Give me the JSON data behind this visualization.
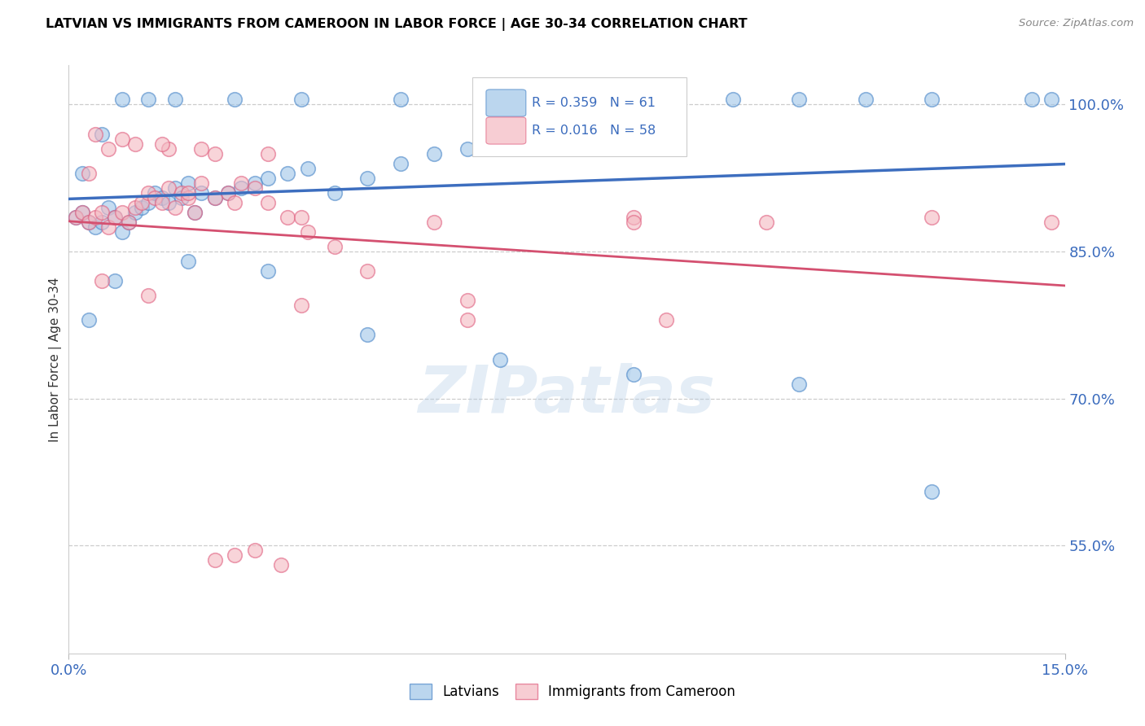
{
  "title": "LATVIAN VS IMMIGRANTS FROM CAMEROON IN LABOR FORCE | AGE 30-34 CORRELATION CHART",
  "source": "Source: ZipAtlas.com",
  "ylabel": "In Labor Force | Age 30-34",
  "yticks": [
    55.0,
    70.0,
    85.0,
    100.0
  ],
  "ytick_labels": [
    "55.0%",
    "70.0%",
    "85.0%",
    "100.0%"
  ],
  "xtick_left": "0.0%",
  "xtick_right": "15.0%",
  "xlim": [
    0.0,
    0.15
  ],
  "ylim": [
    44.0,
    104.0
  ],
  "latvian_R": 0.359,
  "latvian_N": 61,
  "cameroon_R": 0.016,
  "cameroon_N": 58,
  "latvian_color": "#9fc5e8",
  "cameroon_color": "#f4b8c1",
  "latvian_edge_color": "#4a86c8",
  "cameroon_edge_color": "#e06080",
  "latvian_line_color": "#3d6ebf",
  "cameroon_line_color": "#d45070",
  "legend_label_1": "Latvians",
  "legend_label_2": "Immigrants from Cameroon",
  "watermark": "ZIPatlas",
  "latvian_x": [
    0.001,
    0.002,
    0.003,
    0.004,
    0.005,
    0.006,
    0.007,
    0.008,
    0.009,
    0.01,
    0.011,
    0.012,
    0.013,
    0.014,
    0.015,
    0.016,
    0.017,
    0.018,
    0.019,
    0.02,
    0.022,
    0.024,
    0.026,
    0.028,
    0.03,
    0.033,
    0.036,
    0.04,
    0.045,
    0.05,
    0.055,
    0.06,
    0.065,
    0.07,
    0.08,
    0.09,
    0.1,
    0.11,
    0.12,
    0.13,
    0.002,
    0.005,
    0.008,
    0.012,
    0.016,
    0.025,
    0.035,
    0.05,
    0.07,
    0.09,
    0.003,
    0.007,
    0.018,
    0.03,
    0.045,
    0.065,
    0.085,
    0.11,
    0.13,
    0.145,
    0.148
  ],
  "latvian_y": [
    88.5,
    89.0,
    88.0,
    87.5,
    88.0,
    89.5,
    88.5,
    87.0,
    88.0,
    89.0,
    89.5,
    90.0,
    91.0,
    90.5,
    90.0,
    91.5,
    90.5,
    92.0,
    89.0,
    91.0,
    90.5,
    91.0,
    91.5,
    92.0,
    92.5,
    93.0,
    93.5,
    91.0,
    92.5,
    94.0,
    95.0,
    95.5,
    96.0,
    96.5,
    100.5,
    100.5,
    100.5,
    100.5,
    100.5,
    100.5,
    93.0,
    97.0,
    100.5,
    100.5,
    100.5,
    100.5,
    100.5,
    100.5,
    100.5,
    100.5,
    78.0,
    82.0,
    84.0,
    83.0,
    76.5,
    74.0,
    72.5,
    71.5,
    60.5,
    100.5,
    100.5
  ],
  "cameroon_x": [
    0.001,
    0.002,
    0.003,
    0.004,
    0.005,
    0.006,
    0.007,
    0.008,
    0.009,
    0.01,
    0.011,
    0.012,
    0.013,
    0.014,
    0.015,
    0.016,
    0.017,
    0.018,
    0.019,
    0.02,
    0.022,
    0.024,
    0.026,
    0.028,
    0.03,
    0.033,
    0.036,
    0.04,
    0.045,
    0.003,
    0.006,
    0.01,
    0.015,
    0.022,
    0.035,
    0.055,
    0.085,
    0.004,
    0.008,
    0.014,
    0.02,
    0.03,
    0.018,
    0.025,
    0.06,
    0.09,
    0.005,
    0.012,
    0.035,
    0.06,
    0.085,
    0.105,
    0.13,
    0.148,
    0.025,
    0.022,
    0.028,
    0.032
  ],
  "cameroon_y": [
    88.5,
    89.0,
    88.0,
    88.5,
    89.0,
    87.5,
    88.5,
    89.0,
    88.0,
    89.5,
    90.0,
    91.0,
    90.5,
    90.0,
    91.5,
    89.5,
    91.0,
    90.5,
    89.0,
    92.0,
    90.5,
    91.0,
    92.0,
    91.5,
    90.0,
    88.5,
    87.0,
    85.5,
    83.0,
    93.0,
    95.5,
    96.0,
    95.5,
    95.0,
    88.5,
    88.0,
    88.5,
    97.0,
    96.5,
    96.0,
    95.5,
    95.0,
    91.0,
    90.0,
    80.0,
    78.0,
    82.0,
    80.5,
    79.5,
    78.0,
    88.0,
    88.0,
    88.5,
    88.0,
    54.0,
    53.5,
    54.5,
    53.0
  ]
}
